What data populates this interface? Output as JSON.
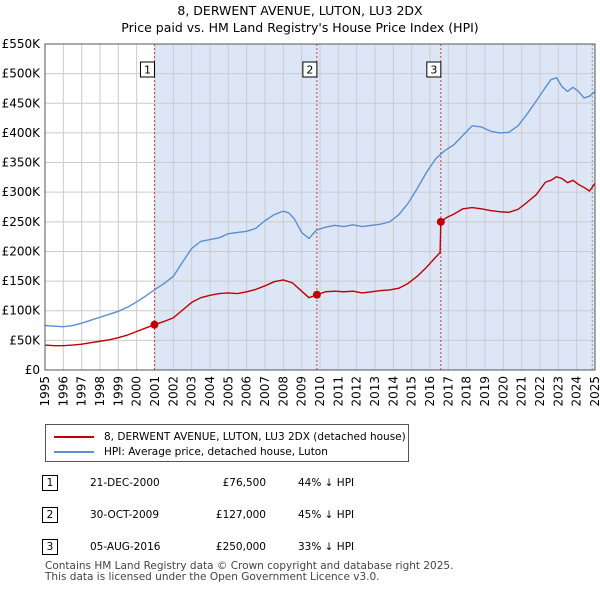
{
  "title_line1": "8, DERWENT AVENUE, LUTON, LU3 2DX",
  "title_line2": "Price paid vs. HM Land Registry's House Price Index (HPI)",
  "legend": {
    "property_label": "8, DERWENT AVENUE, LUTON, LU3 2DX (detached house)",
    "hpi_label": "HPI: Average price, detached house, Luton"
  },
  "sales": [
    {
      "num": "1",
      "date": "21-DEC-2000",
      "price": "£76,500",
      "hpi_diff": "44% ↓ HPI"
    },
    {
      "num": "2",
      "date": "30-OCT-2009",
      "price": "£127,000",
      "hpi_diff": "45% ↓ HPI"
    },
    {
      "num": "3",
      "date": "05-AUG-2016",
      "price": "£250,000",
      "hpi_diff": "33% ↓ HPI"
    }
  ],
  "footer": {
    "line1": "Contains HM Land Registry data © Crown copyright and database right 2025.",
    "line2": "This data is licensed under the Open Government Licence v3.0."
  },
  "colors": {
    "property": "#c00000",
    "hpi": "#5b8fcf",
    "sale_band": "#dde6f7",
    "marker_line": "#d04040",
    "grid": "#cccccc"
  },
  "chart_data": {
    "type": "line",
    "title": "8, DERWENT AVENUE, LUTON, LU3 2DX — Price paid vs. HM Land Registry's House Price Index (HPI)",
    "xlabel": "",
    "ylabel": "",
    "xlim": [
      1995,
      2025
    ],
    "ylim": [
      0,
      550000
    ],
    "grid": true,
    "x_ticks": [
      1995,
      1996,
      1997,
      1998,
      1999,
      2000,
      2001,
      2002,
      2003,
      2004,
      2005,
      2006,
      2007,
      2008,
      2009,
      2010,
      2011,
      2012,
      2013,
      2014,
      2015,
      2016,
      2017,
      2018,
      2019,
      2020,
      2021,
      2022,
      2023,
      2024,
      2025
    ],
    "y_ticks": [
      0,
      50000,
      100000,
      150000,
      200000,
      250000,
      300000,
      350000,
      400000,
      450000,
      500000,
      550000
    ],
    "y_tick_labels": [
      "£0",
      "£50K",
      "£100K",
      "£150K",
      "£200K",
      "£250K",
      "£300K",
      "£350K",
      "£400K",
      "£450K",
      "£500K",
      "£550K"
    ],
    "sale_markers": [
      {
        "label": "1",
        "x": 2000.97,
        "y": 76500
      },
      {
        "label": "2",
        "x": 2009.83,
        "y": 127000
      },
      {
        "label": "3",
        "x": 2016.59,
        "y": 250000
      }
    ],
    "series": [
      {
        "name": "8, DERWENT AVENUE, LUTON, LU3 2DX (detached house)",
        "x": [
          1995,
          1995.5,
          1996,
          1996.5,
          1997,
          1997.5,
          1998,
          1998.5,
          1999,
          1999.5,
          2000,
          2000.5,
          2000.97,
          2001.5,
          2002,
          2002.5,
          2003,
          2003.5,
          2004,
          2004.5,
          2005,
          2005.5,
          2006,
          2006.5,
          2007,
          2007.5,
          2008,
          2008.5,
          2009,
          2009.4,
          2009.83,
          2010.3,
          2010.8,
          2011.3,
          2011.8,
          2012.3,
          2012.8,
          2013.3,
          2013.8,
          2014.3,
          2014.8,
          2015.3,
          2015.8,
          2016.3,
          2016.55,
          2016.59,
          2016.9,
          2017.3,
          2017.8,
          2018.3,
          2018.8,
          2019.3,
          2019.8,
          2020.3,
          2020.8,
          2021.3,
          2021.8,
          2022.3,
          2022.6,
          2022.9,
          2023.2,
          2023.5,
          2023.8,
          2024.1,
          2024.4,
          2024.7,
          2025
        ],
        "values": [
          42000,
          41000,
          41000,
          42000,
          43500,
          46000,
          48500,
          51000,
          54500,
          59000,
          65000,
          71000,
          76500,
          82000,
          88000,
          101000,
          114000,
          122000,
          126000,
          129000,
          130000,
          129000,
          132000,
          136000,
          142000,
          149000,
          152000,
          147000,
          133000,
          122000,
          127000,
          132000,
          133000,
          132000,
          133000,
          130000,
          132000,
          134000,
          135000,
          138000,
          146000,
          158000,
          173000,
          190000,
          198000,
          250000,
          257000,
          263000,
          272000,
          274000,
          272000,
          269000,
          267000,
          266000,
          271000,
          283000,
          296000,
          317000,
          320000,
          326000,
          323000,
          316000,
          320000,
          313000,
          308000,
          302000,
          315000
        ]
      },
      {
        "name": "HPI: Average price, detached house, Luton",
        "x": [
          1995,
          1995.5,
          1996,
          1996.5,
          1997,
          1997.5,
          1998,
          1998.5,
          1999,
          1999.5,
          2000,
          2000.5,
          2001,
          2001.5,
          2002,
          2002.5,
          2003,
          2003.5,
          2004,
          2004.5,
          2005,
          2005.5,
          2006,
          2006.5,
          2007,
          2007.5,
          2008,
          2008.3,
          2008.6,
          2009,
          2009.4,
          2009.8,
          2010.3,
          2010.8,
          2011.3,
          2011.8,
          2012.3,
          2012.8,
          2013.3,
          2013.8,
          2014.3,
          2014.8,
          2015.3,
          2015.8,
          2016.3,
          2016.8,
          2017.3,
          2017.8,
          2018.3,
          2018.8,
          2019.3,
          2019.8,
          2020.3,
          2020.8,
          2021.3,
          2021.8,
          2022.3,
          2022.6,
          2022.9,
          2023.2,
          2023.5,
          2023.8,
          2024.1,
          2024.4,
          2024.7,
          2025
        ],
        "values": [
          75000,
          74000,
          73000,
          75000,
          79000,
          84000,
          89000,
          94000,
          99000,
          106000,
          115000,
          125000,
          136000,
          146000,
          158000,
          182000,
          205000,
          217000,
          220000,
          223000,
          230000,
          232000,
          234000,
          239000,
          252000,
          262000,
          268000,
          265000,
          255000,
          232000,
          222000,
          236000,
          241000,
          244000,
          242000,
          245000,
          242000,
          244000,
          246000,
          250000,
          262000,
          281000,
          306000,
          333000,
          356000,
          370000,
          380000,
          396000,
          412000,
          410000,
          403000,
          400000,
          401000,
          412000,
          432000,
          454000,
          477000,
          490000,
          493000,
          478000,
          470000,
          477000,
          470000,
          459000,
          462000,
          470000
        ]
      }
    ]
  }
}
